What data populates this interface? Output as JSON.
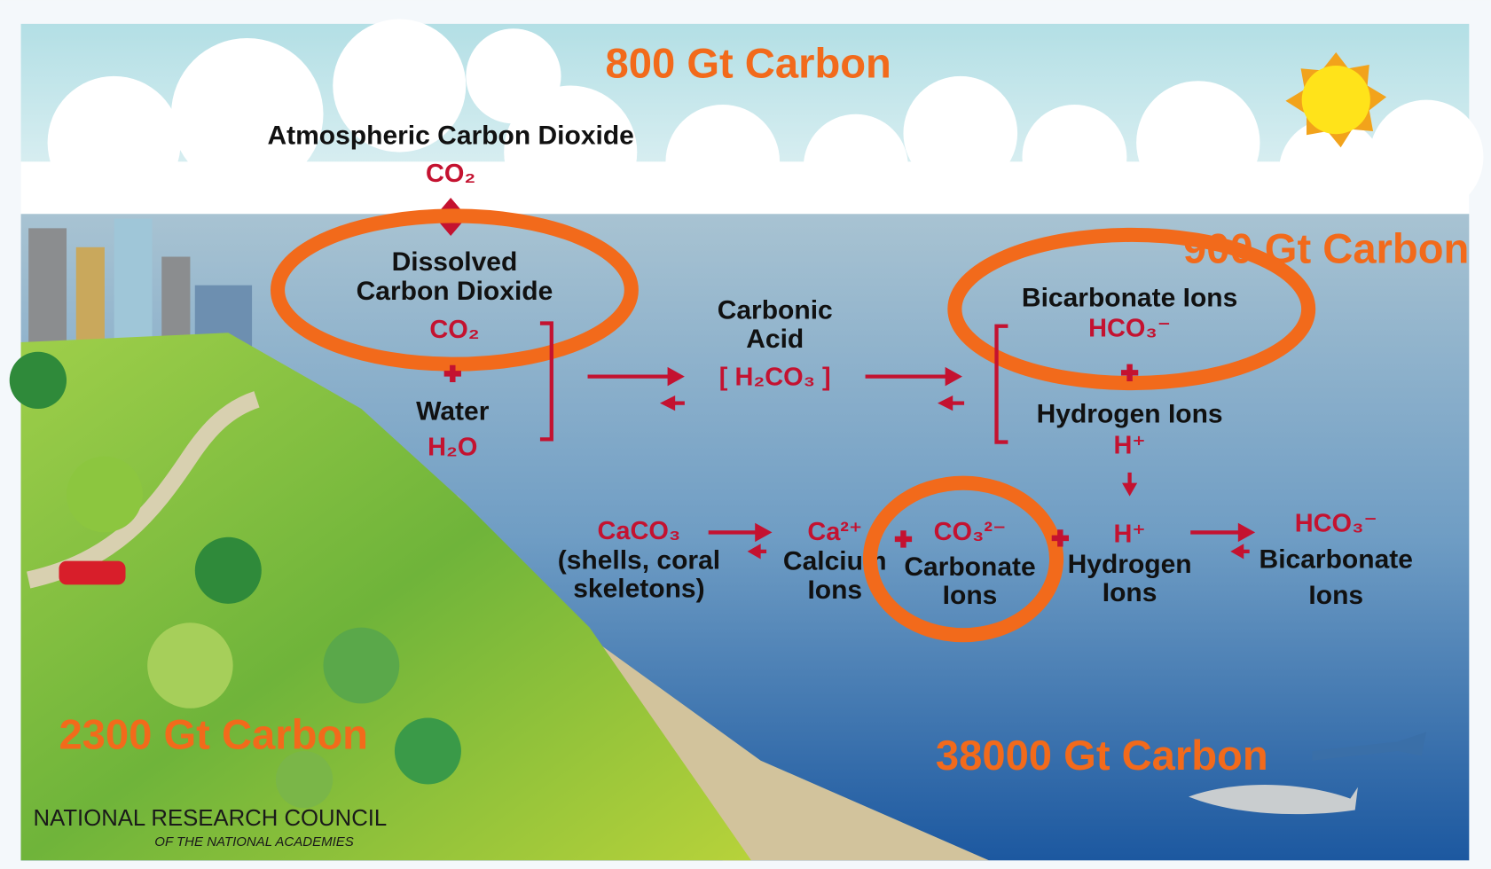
{
  "labels": {
    "atmosphere_carbon": "800 Gt Carbon",
    "atmospheric_co2": "Atmospheric Carbon Dioxide",
    "atmospheric_co2_formula": "CO₂",
    "dissolved_co2": [
      "Dissolved",
      "Carbon Dioxide"
    ],
    "dissolved_co2_formula": "CO₂",
    "water": "Water",
    "water_formula": "H₂O",
    "carbonic_acid": [
      "Carbonic",
      "Acid"
    ],
    "carbonic_acid_formula": "[ H₂CO₃ ]",
    "surface_ocean_carbon": "900 Gt Carbon",
    "bicarbonate_ions_top": "Bicarbonate Ions",
    "bicarbonate_formula_top": "HCO₃⁻",
    "hydrogen_ions_top": "Hydrogen Ions",
    "hydrogen_formula_top": "H⁺",
    "calcium_carbonate_formula": "CaCO₃",
    "calcium_carbonate": [
      "(shells, coral",
      "skeletons)"
    ],
    "calcium_formula": "Ca²⁺",
    "calcium_ions": [
      "Calcium",
      "Ions"
    ],
    "carbonate_formula": "CO₃²⁻",
    "carbonate_ions": [
      "Carbonate",
      "Ions"
    ],
    "hydrogen_formula_bottom": "H⁺",
    "hydrogen_ions_bottom": [
      "Hydrogen",
      "Ions"
    ],
    "bicarbonate_formula_bottom": "HCO₃⁻",
    "bicarbonate_ions_bottom": [
      "Bicarbonate",
      "Ions"
    ],
    "land_carbon": "2300 Gt Carbon",
    "deep_ocean_carbon": "38000 Gt Carbon",
    "credit": "NATIONAL RESEARCH COUNCIL",
    "credit_sub": "OF THE NATIONAL ACADEMIES"
  }
}
